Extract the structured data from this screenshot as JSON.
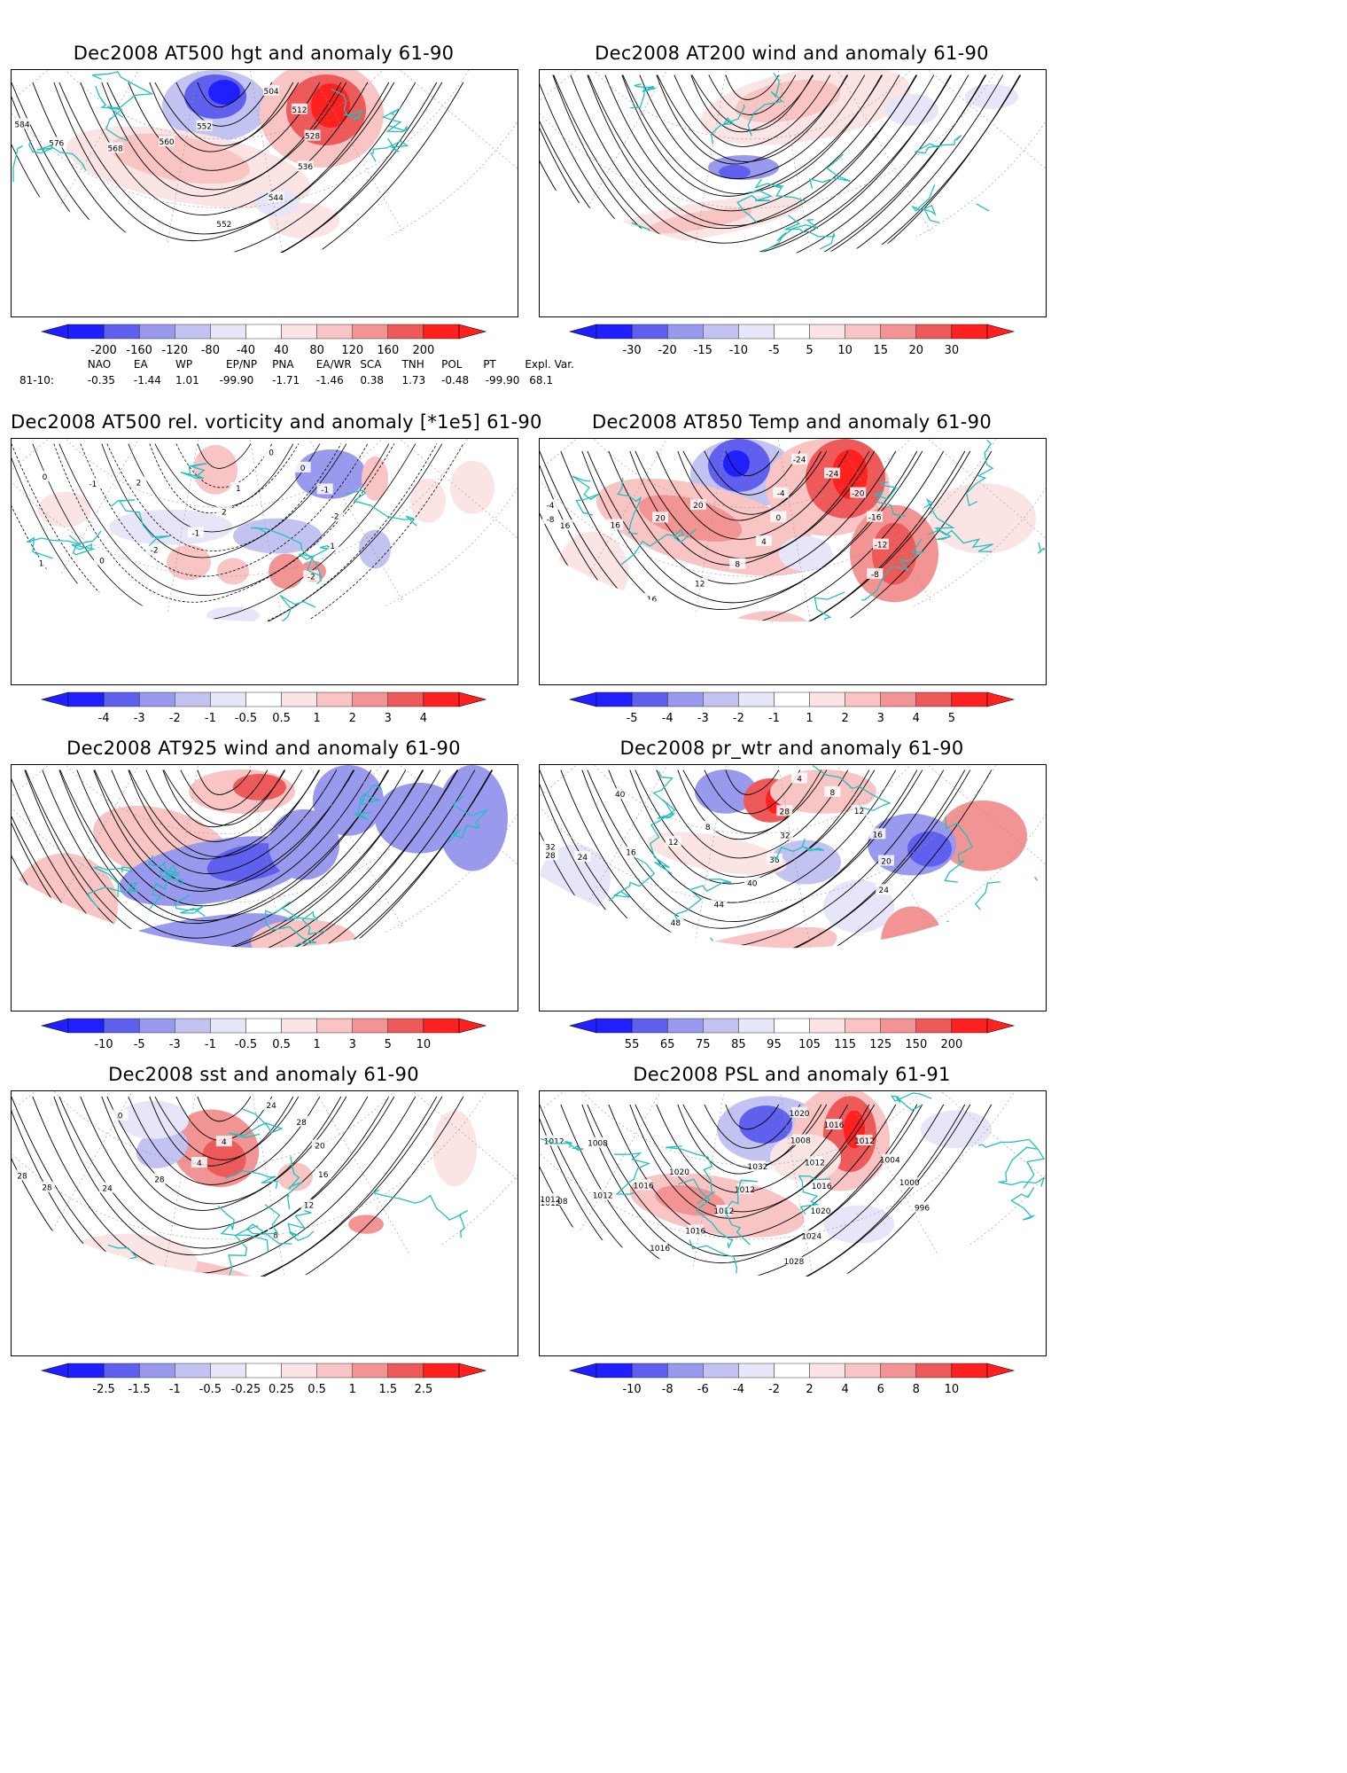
{
  "panels": [
    {
      "title": "Dec2008 AT500 hgt and anomaly 61-90",
      "ticks": [
        "-200",
        "-160",
        "-120",
        "-80",
        "-40",
        "40",
        "80",
        "120",
        "160",
        "200"
      ],
      "kind": "hgt"
    },
    {
      "title": "Dec2008 AT200 wind and anomaly 61-90",
      "ticks": [
        "-30",
        "-20",
        "-15",
        "-10",
        "-5",
        "5",
        "10",
        "15",
        "20",
        "30"
      ],
      "kind": "wind"
    },
    {
      "title": "Dec2008 AT500 rel. vorticity and anomaly [*1e5] 61-90",
      "ticks": [
        "-4",
        "-3",
        "-2",
        "-1",
        "-0.5",
        "0.5",
        "1",
        "2",
        "3",
        "4"
      ],
      "kind": "vort"
    },
    {
      "title": "Dec2008 AT850 Temp and anomaly 61-90",
      "ticks": [
        "-5",
        "-4",
        "-3",
        "-2",
        "-1",
        "1",
        "2",
        "3",
        "4",
        "5"
      ],
      "kind": "temp"
    },
    {
      "title": "Dec2008 AT925 wind and anomaly 61-90",
      "ticks": [
        "-10",
        "-5",
        "-3",
        "-1",
        "-0.5",
        "0.5",
        "1",
        "3",
        "5",
        "10"
      ],
      "kind": "wind925"
    },
    {
      "title": "Dec2008 pr_wtr and anomaly 61-90",
      "ticks": [
        "55",
        "65",
        "75",
        "85",
        "95",
        "105",
        "115",
        "125",
        "150",
        "200"
      ],
      "kind": "prw"
    },
    {
      "title": "Dec2008 sst and anomaly 61-90",
      "ticks": [
        "-2.5",
        "-1.5",
        "-1",
        "-0.5",
        "-0.25",
        "0.25",
        "0.5",
        "1",
        "1.5",
        "2.5"
      ],
      "kind": "sst"
    },
    {
      "title": "Dec2008 PSL and anomaly 61-91",
      "ticks": [
        "-10",
        "-8",
        "-6",
        "-4",
        "-2",
        "2",
        "4",
        "6",
        "8",
        "10"
      ],
      "kind": "psl"
    }
  ],
  "contour_labels": {
    "hgt": [
      "504",
      "512",
      "528",
      "536",
      "544",
      "552",
      "552",
      "560",
      "568",
      "576",
      "584"
    ],
    "vort": [
      "0",
      "0",
      "-1",
      "-2",
      "-1",
      "-2",
      "1",
      "2",
      "-1",
      "-2",
      "0",
      "1",
      "2",
      "-1",
      "0"
    ],
    "temp": [
      "-24",
      "-24",
      "-20",
      "-16",
      "-12",
      "-8",
      "-4",
      "0",
      "4",
      "8",
      "12",
      "16",
      "20",
      "20",
      "16",
      "16",
      "-8",
      "-4"
    ],
    "prw": [
      "4",
      "8",
      "12",
      "16",
      "20",
      "24",
      "28",
      "32",
      "36",
      "40",
      "44",
      "48",
      "8",
      "12",
      "16",
      "24",
      "28",
      "32",
      "40"
    ],
    "sst": [
      "24",
      "28",
      "20",
      "16",
      "12",
      "8",
      "4",
      "4",
      "28",
      "24",
      "28",
      "28",
      "0"
    ],
    "psl": [
      "1020",
      "1016",
      "1012",
      "1004",
      "1000",
      "996",
      "1008",
      "1012",
      "1016",
      "1020",
      "1024",
      "1028",
      "1032",
      "1012",
      "1012",
      "1016",
      "1016",
      "1020",
      "1020",
      "1016",
      "1012",
      "1008",
      "1012",
      "1012",
      "1008",
      "1012"
    ]
  },
  "indices": {
    "header": [
      "NAO",
      "EA",
      "WP",
      "EP/NP",
      "PNA",
      "EA/WR",
      "SCA",
      "TNH",
      "POL",
      "PT",
      "Expl. Var."
    ],
    "row_label": "81-10:",
    "values": [
      "-0.35",
      "-1.44",
      "1.01",
      "-99.90",
      "-1.71",
      "-1.46",
      "0.38",
      "1.73",
      "-0.48",
      "-99.90",
      "68.1"
    ]
  },
  "colors": {
    "blue": [
      "#2020ff",
      "#6060ee",
      "#9999ee",
      "#c3c3f2",
      "#e6e6f8"
    ],
    "red": [
      "#fbe4e4",
      "#f8c4c4",
      "#f39494",
      "#ee5a5a",
      "#ff2020"
    ],
    "coast": "#20c0c0"
  }
}
